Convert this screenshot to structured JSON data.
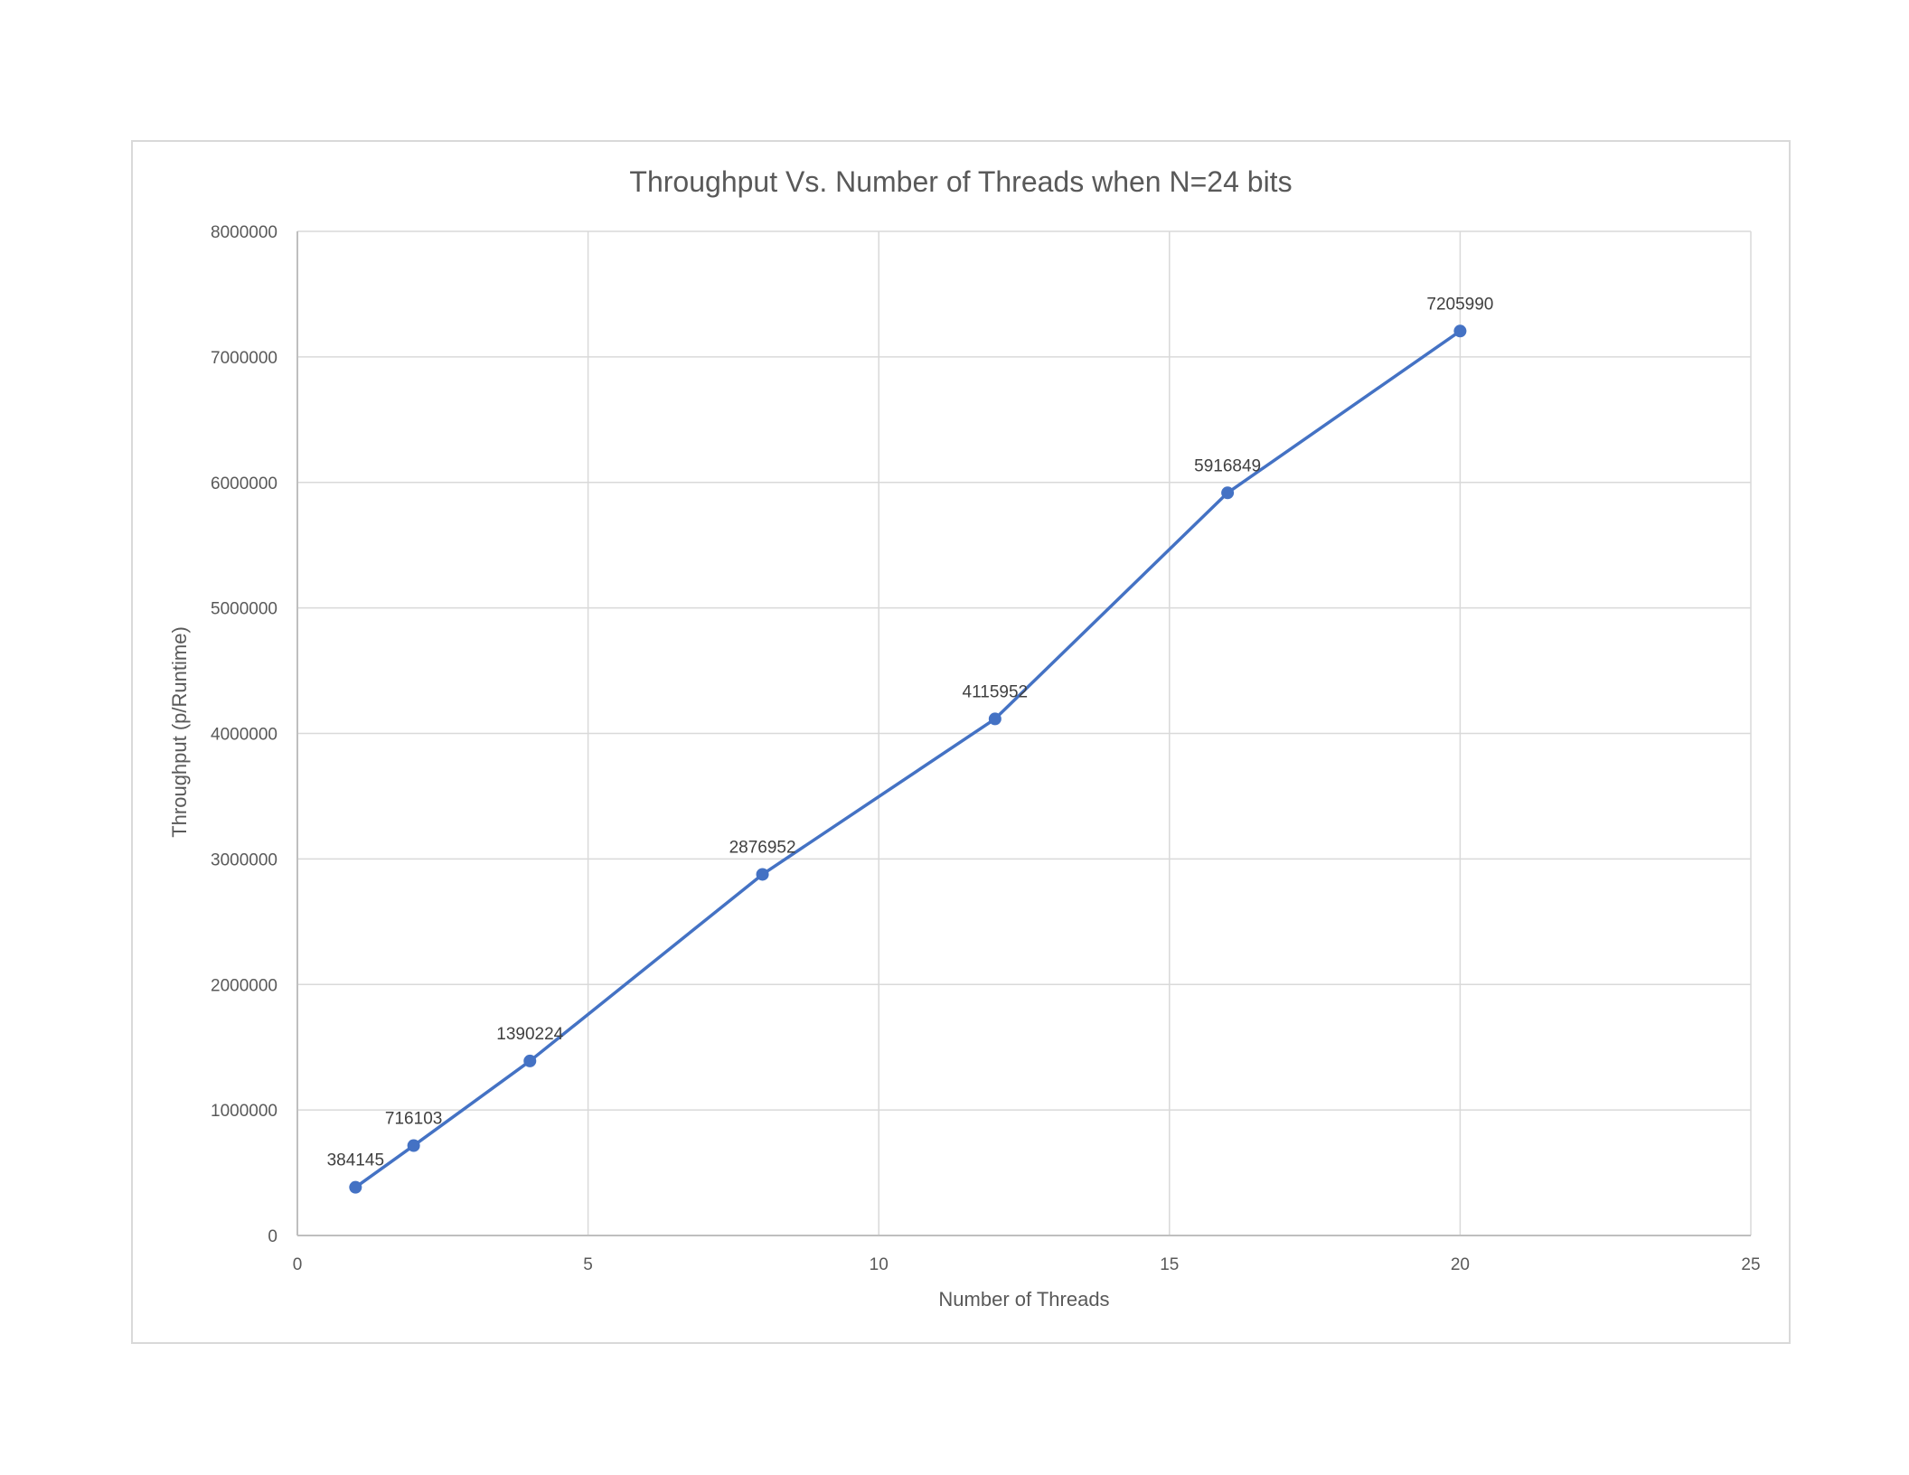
{
  "chart_data": {
    "type": "scatter",
    "title": "Throughput Vs. Number of Threads when N=24 bits",
    "xlabel": "Number of Threads",
    "ylabel": "Throughput (p/Runtime)",
    "xlim": [
      0,
      25
    ],
    "ylim": [
      0,
      8000000
    ],
    "x_ticks": [
      0,
      5,
      10,
      15,
      20,
      25
    ],
    "y_ticks": [
      0,
      1000000,
      2000000,
      3000000,
      4000000,
      5000000,
      6000000,
      7000000,
      8000000
    ],
    "grid": true,
    "legend": "none",
    "lines": true,
    "markers": true,
    "series": [
      {
        "color": "#4472c4",
        "points": [
          {
            "x": 1,
            "y": 384145,
            "label": "384145"
          },
          {
            "x": 2,
            "y": 716103,
            "label": "716103"
          },
          {
            "x": 4,
            "y": 1390224,
            "label": "1390224"
          },
          {
            "x": 8,
            "y": 2876952,
            "label": "2876952"
          },
          {
            "x": 12,
            "y": 4115952,
            "label": "4115952"
          },
          {
            "x": 16,
            "y": 5916849,
            "label": "5916849"
          },
          {
            "x": 20,
            "y": 7205990,
            "label": "7205990"
          }
        ]
      }
    ]
  }
}
